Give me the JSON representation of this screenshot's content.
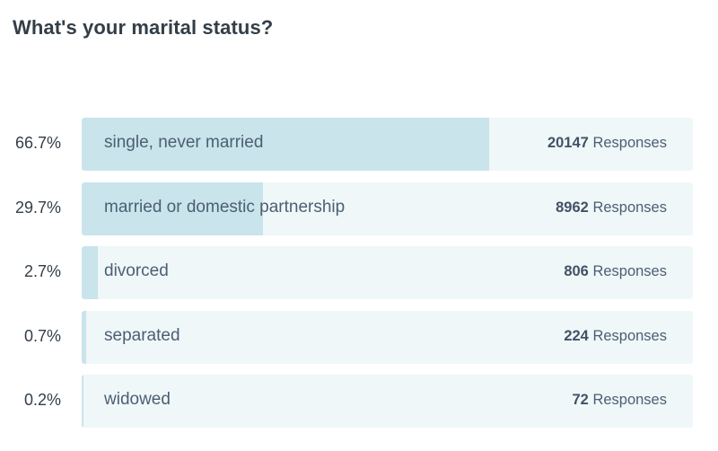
{
  "question": {
    "title": "What's your marital status?"
  },
  "colors": {
    "track": "#eff7f9",
    "fill": "#c9e4ea",
    "text": "#4c5f72",
    "title": "#333e48"
  },
  "response_suffix": "Responses",
  "chart_data": {
    "type": "bar",
    "orientation": "horizontal",
    "title": "What's your marital status?",
    "categories": [
      "single, never married",
      "married or domestic partnership",
      "divorced",
      "separated",
      "widowed"
    ],
    "percent_labels": [
      "66.7%",
      "29.7%",
      "2.7%",
      "0.7%",
      "0.2%"
    ],
    "values": [
      66.7,
      29.7,
      2.7,
      0.7,
      0.2
    ],
    "responses": [
      20147,
      8962,
      806,
      224,
      72
    ],
    "xlim": [
      0,
      100
    ]
  }
}
